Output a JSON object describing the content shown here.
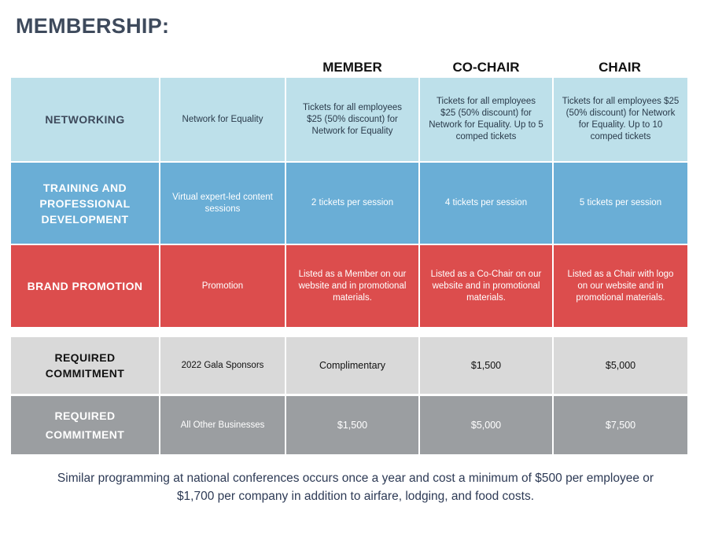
{
  "title": "MEMBERSHIP:",
  "columns": [
    "MEMBER",
    "CO-CHAIR",
    "CHAIR"
  ],
  "rows": [
    {
      "label": "NETWORKING",
      "desc": "Network for Equality",
      "member": "Tickets for all employees $25 (50% discount) for Network for Equality",
      "cochair": "Tickets for all employees $25 (50% discount) for Network for Equality. Up to 5 comped tickets",
      "chair": "Tickets for all employees $25 (50% discount) for Network for Equality. Up to 10 comped tickets"
    },
    {
      "label": "TRAINING AND PROFESSIONAL DEVELOPMENT",
      "desc": "Virtual expert-led content sessions",
      "member": "2 tickets per session",
      "cochair": "4 tickets per session",
      "chair": "5 tickets per session"
    },
    {
      "label": "BRAND PROMOTION",
      "desc": "Promotion",
      "member": "Listed as a Member on our website and in promotional materials.",
      "cochair": "Listed as a Co-Chair on our website and in promotional materials.",
      "chair": "Listed as a Chair with logo on our website and in promotional materials."
    },
    {
      "label": "REQUIRED COMMITMENT",
      "desc": "2022 Gala Sponsors",
      "member": "Complimentary",
      "cochair": "$1,500",
      "chair": "$5,000"
    },
    {
      "label": "REQUIRED COMMITMENT",
      "desc": "All Other Businesses",
      "member": "$1,500",
      "cochair": "$5,000",
      "chair": "$7,500"
    }
  ],
  "footer": "Similar programming at national conferences occurs once a year and cost a minimum of $500 per employee or $1,700 per company in addition to airfare, lodging, and food costs.",
  "colors": {
    "networking": "#bde0ea",
    "training": "#6aaed6",
    "brand": "#dc4d4d",
    "required_gala": "#d9d9d9",
    "required_other": "#9b9ea1"
  }
}
